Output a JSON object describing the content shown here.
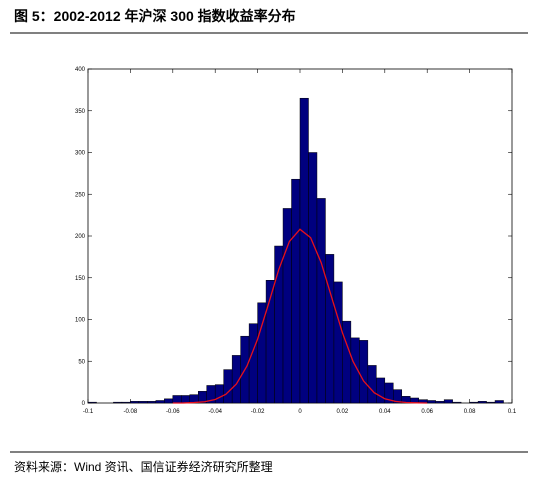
{
  "chart_data": {
    "type": "histogram",
    "title": "图 5：2002-2012 年沪深 300 指数收益率分布",
    "source": "资料来源：Wind 资讯、国信证券经济研究所整理",
    "bins": [
      -0.1,
      -0.096,
      -0.092,
      -0.088,
      -0.084,
      -0.08,
      -0.076,
      -0.072,
      -0.068,
      -0.064,
      -0.06,
      -0.056,
      -0.052,
      -0.048,
      -0.044,
      -0.04,
      -0.036,
      -0.032,
      -0.028,
      -0.024,
      -0.02,
      -0.016,
      -0.012,
      -0.008,
      -0.004,
      0,
      0.004,
      0.008,
      0.012,
      0.016,
      0.02,
      0.024,
      0.028,
      0.032,
      0.036,
      0.04,
      0.044,
      0.048,
      0.052,
      0.056,
      0.06,
      0.064,
      0.068,
      0.072,
      0.076,
      0.08,
      0.084,
      0.088,
      0.092,
      0.096,
      0.1
    ],
    "values": [
      1,
      0,
      0,
      1,
      1,
      2,
      2,
      2,
      3,
      5,
      9,
      9,
      10,
      14,
      21,
      22,
      40,
      57,
      80,
      95,
      120,
      147,
      188,
      233,
      268,
      365,
      300,
      245,
      178,
      145,
      98,
      78,
      75,
      45,
      30,
      24,
      16,
      8,
      6,
      4,
      3,
      2,
      4,
      1,
      0,
      1,
      2,
      1,
      3,
      0
    ],
    "color": "#00007f",
    "curve": {
      "color": "#e8101a",
      "x": [
        -0.06,
        -0.055,
        -0.05,
        -0.045,
        -0.04,
        -0.035,
        -0.03,
        -0.025,
        -0.02,
        -0.015,
        -0.01,
        -0.005,
        0,
        0.005,
        0.01,
        0.015,
        0.02,
        0.025,
        0.03,
        0.035,
        0.04,
        0.045,
        0.05,
        0.055,
        0.06
      ],
      "values": [
        0,
        0.1,
        0.5,
        1.5,
        4.2,
        10.4,
        22.8,
        44.3,
        76.5,
        117.5,
        160,
        193.5,
        208,
        198,
        168,
        126,
        84.2,
        49.9,
        26.3,
        12.3,
        5.1,
        1.9,
        0.6,
        0.2,
        0
      ]
    },
    "xlim": [
      -0.1,
      0.1
    ],
    "xticks": [
      -0.1,
      -0.08,
      -0.06,
      -0.04,
      -0.02,
      0,
      0.02,
      0.04,
      0.06,
      0.08,
      0.1
    ],
    "ylim": [
      0,
      400
    ],
    "yticks": [
      0,
      50,
      100,
      150,
      200,
      250,
      300,
      350,
      400
    ]
  }
}
